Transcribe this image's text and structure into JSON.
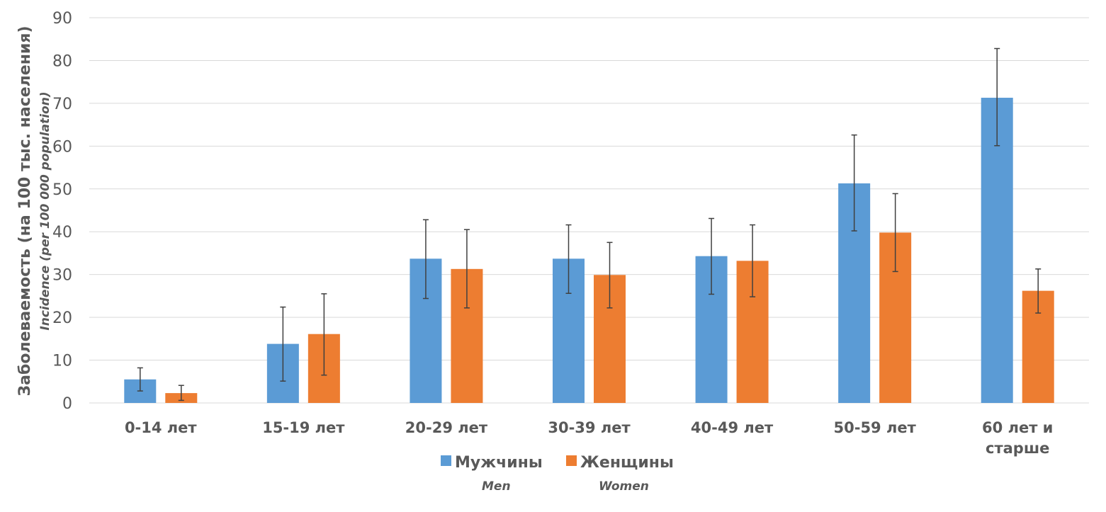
{
  "chart_data": {
    "type": "bar",
    "ylabel": "Заболеваемость (на 100 тыс. населения)",
    "ylabel_en": "Incidence (per 100 000 population)",
    "ylim": [
      0,
      90
    ],
    "yticks": [
      0,
      10,
      20,
      30,
      40,
      50,
      60,
      70,
      80,
      90
    ],
    "grid": true,
    "legend_position": "bottom",
    "categories": [
      [
        "0-14 лет"
      ],
      [
        "15-19 лет"
      ],
      [
        "20-29 лет"
      ],
      [
        "30-39 лет"
      ],
      [
        "40-49 лет"
      ],
      [
        "50-59 лет"
      ],
      [
        "60 лет и",
        "старше"
      ]
    ],
    "series": [
      {
        "name": "Мужчины",
        "name_en": "Men",
        "color": "#5B9BD5",
        "values": [
          5.5,
          13.8,
          33.7,
          33.7,
          34.3,
          51.3,
          71.3
        ],
        "error_low": [
          2.8,
          5.1,
          24.4,
          25.6,
          25.4,
          40.2,
          60.1
        ],
        "error_high": [
          8.2,
          22.4,
          42.8,
          41.6,
          43.1,
          62.6,
          82.8
        ]
      },
      {
        "name": "Женщины",
        "name_en": "Women",
        "color": "#ED7D31",
        "values": [
          2.3,
          16.1,
          31.3,
          29.9,
          33.2,
          39.8,
          26.2
        ],
        "error_low": [
          0.6,
          6.5,
          22.2,
          22.2,
          24.8,
          30.7,
          21.0
        ],
        "error_high": [
          4.1,
          25.5,
          40.5,
          37.5,
          41.6,
          48.9,
          31.3
        ]
      }
    ]
  }
}
